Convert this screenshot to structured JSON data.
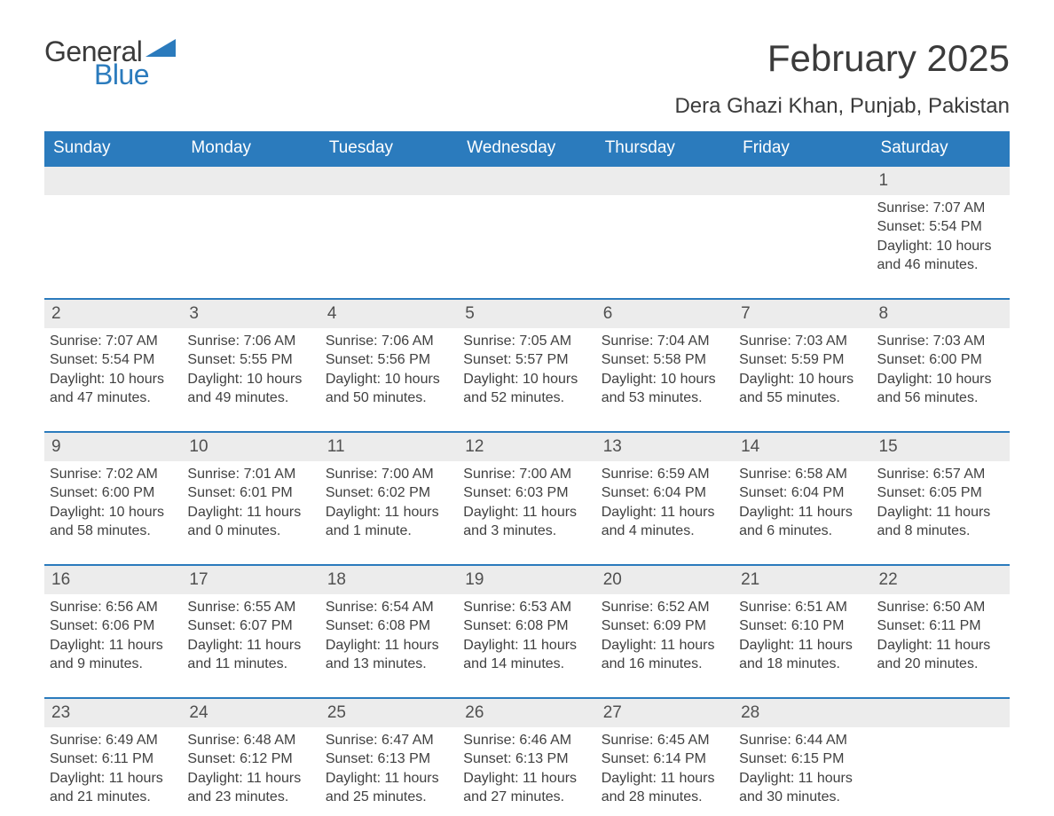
{
  "logo": {
    "part1": "General",
    "part2": "Blue",
    "triangle_color": "#2b7bbd"
  },
  "title": "February 2025",
  "location": "Dera Ghazi Khan, Punjab, Pakistan",
  "styling": {
    "header_bg": "#2b7bbd",
    "header_text": "#ffffff",
    "daynum_bg": "#ececec",
    "border_color": "#2b7bbd",
    "body_text": "#404040",
    "title_fontsize": 42,
    "location_fontsize": 24,
    "header_fontsize": 19,
    "daynum_fontsize": 19,
    "detail_fontsize": 16
  },
  "weekdays": [
    "Sunday",
    "Monday",
    "Tuesday",
    "Wednesday",
    "Thursday",
    "Friday",
    "Saturday"
  ],
  "weeks": [
    [
      {
        "day": "",
        "sunrise": "",
        "sunset": "",
        "daylight": ""
      },
      {
        "day": "",
        "sunrise": "",
        "sunset": "",
        "daylight": ""
      },
      {
        "day": "",
        "sunrise": "",
        "sunset": "",
        "daylight": ""
      },
      {
        "day": "",
        "sunrise": "",
        "sunset": "",
        "daylight": ""
      },
      {
        "day": "",
        "sunrise": "",
        "sunset": "",
        "daylight": ""
      },
      {
        "day": "",
        "sunrise": "",
        "sunset": "",
        "daylight": ""
      },
      {
        "day": "1",
        "sunrise": "Sunrise: 7:07 AM",
        "sunset": "Sunset: 5:54 PM",
        "daylight": "Daylight: 10 hours and 46 minutes."
      }
    ],
    [
      {
        "day": "2",
        "sunrise": "Sunrise: 7:07 AM",
        "sunset": "Sunset: 5:54 PM",
        "daylight": "Daylight: 10 hours and 47 minutes."
      },
      {
        "day": "3",
        "sunrise": "Sunrise: 7:06 AM",
        "sunset": "Sunset: 5:55 PM",
        "daylight": "Daylight: 10 hours and 49 minutes."
      },
      {
        "day": "4",
        "sunrise": "Sunrise: 7:06 AM",
        "sunset": "Sunset: 5:56 PM",
        "daylight": "Daylight: 10 hours and 50 minutes."
      },
      {
        "day": "5",
        "sunrise": "Sunrise: 7:05 AM",
        "sunset": "Sunset: 5:57 PM",
        "daylight": "Daylight: 10 hours and 52 minutes."
      },
      {
        "day": "6",
        "sunrise": "Sunrise: 7:04 AM",
        "sunset": "Sunset: 5:58 PM",
        "daylight": "Daylight: 10 hours and 53 minutes."
      },
      {
        "day": "7",
        "sunrise": "Sunrise: 7:03 AM",
        "sunset": "Sunset: 5:59 PM",
        "daylight": "Daylight: 10 hours and 55 minutes."
      },
      {
        "day": "8",
        "sunrise": "Sunrise: 7:03 AM",
        "sunset": "Sunset: 6:00 PM",
        "daylight": "Daylight: 10 hours and 56 minutes."
      }
    ],
    [
      {
        "day": "9",
        "sunrise": "Sunrise: 7:02 AM",
        "sunset": "Sunset: 6:00 PM",
        "daylight": "Daylight: 10 hours and 58 minutes."
      },
      {
        "day": "10",
        "sunrise": "Sunrise: 7:01 AM",
        "sunset": "Sunset: 6:01 PM",
        "daylight": "Daylight: 11 hours and 0 minutes."
      },
      {
        "day": "11",
        "sunrise": "Sunrise: 7:00 AM",
        "sunset": "Sunset: 6:02 PM",
        "daylight": "Daylight: 11 hours and 1 minute."
      },
      {
        "day": "12",
        "sunrise": "Sunrise: 7:00 AM",
        "sunset": "Sunset: 6:03 PM",
        "daylight": "Daylight: 11 hours and 3 minutes."
      },
      {
        "day": "13",
        "sunrise": "Sunrise: 6:59 AM",
        "sunset": "Sunset: 6:04 PM",
        "daylight": "Daylight: 11 hours and 4 minutes."
      },
      {
        "day": "14",
        "sunrise": "Sunrise: 6:58 AM",
        "sunset": "Sunset: 6:04 PM",
        "daylight": "Daylight: 11 hours and 6 minutes."
      },
      {
        "day": "15",
        "sunrise": "Sunrise: 6:57 AM",
        "sunset": "Sunset: 6:05 PM",
        "daylight": "Daylight: 11 hours and 8 minutes."
      }
    ],
    [
      {
        "day": "16",
        "sunrise": "Sunrise: 6:56 AM",
        "sunset": "Sunset: 6:06 PM",
        "daylight": "Daylight: 11 hours and 9 minutes."
      },
      {
        "day": "17",
        "sunrise": "Sunrise: 6:55 AM",
        "sunset": "Sunset: 6:07 PM",
        "daylight": "Daylight: 11 hours and 11 minutes."
      },
      {
        "day": "18",
        "sunrise": "Sunrise: 6:54 AM",
        "sunset": "Sunset: 6:08 PM",
        "daylight": "Daylight: 11 hours and 13 minutes."
      },
      {
        "day": "19",
        "sunrise": "Sunrise: 6:53 AM",
        "sunset": "Sunset: 6:08 PM",
        "daylight": "Daylight: 11 hours and 14 minutes."
      },
      {
        "day": "20",
        "sunrise": "Sunrise: 6:52 AM",
        "sunset": "Sunset: 6:09 PM",
        "daylight": "Daylight: 11 hours and 16 minutes."
      },
      {
        "day": "21",
        "sunrise": "Sunrise: 6:51 AM",
        "sunset": "Sunset: 6:10 PM",
        "daylight": "Daylight: 11 hours and 18 minutes."
      },
      {
        "day": "22",
        "sunrise": "Sunrise: 6:50 AM",
        "sunset": "Sunset: 6:11 PM",
        "daylight": "Daylight: 11 hours and 20 minutes."
      }
    ],
    [
      {
        "day": "23",
        "sunrise": "Sunrise: 6:49 AM",
        "sunset": "Sunset: 6:11 PM",
        "daylight": "Daylight: 11 hours and 21 minutes."
      },
      {
        "day": "24",
        "sunrise": "Sunrise: 6:48 AM",
        "sunset": "Sunset: 6:12 PM",
        "daylight": "Daylight: 11 hours and 23 minutes."
      },
      {
        "day": "25",
        "sunrise": "Sunrise: 6:47 AM",
        "sunset": "Sunset: 6:13 PM",
        "daylight": "Daylight: 11 hours and 25 minutes."
      },
      {
        "day": "26",
        "sunrise": "Sunrise: 6:46 AM",
        "sunset": "Sunset: 6:13 PM",
        "daylight": "Daylight: 11 hours and 27 minutes."
      },
      {
        "day": "27",
        "sunrise": "Sunrise: 6:45 AM",
        "sunset": "Sunset: 6:14 PM",
        "daylight": "Daylight: 11 hours and 28 minutes."
      },
      {
        "day": "28",
        "sunrise": "Sunrise: 6:44 AM",
        "sunset": "Sunset: 6:15 PM",
        "daylight": "Daylight: 11 hours and 30 minutes."
      },
      {
        "day": "",
        "sunrise": "",
        "sunset": "",
        "daylight": ""
      }
    ]
  ]
}
